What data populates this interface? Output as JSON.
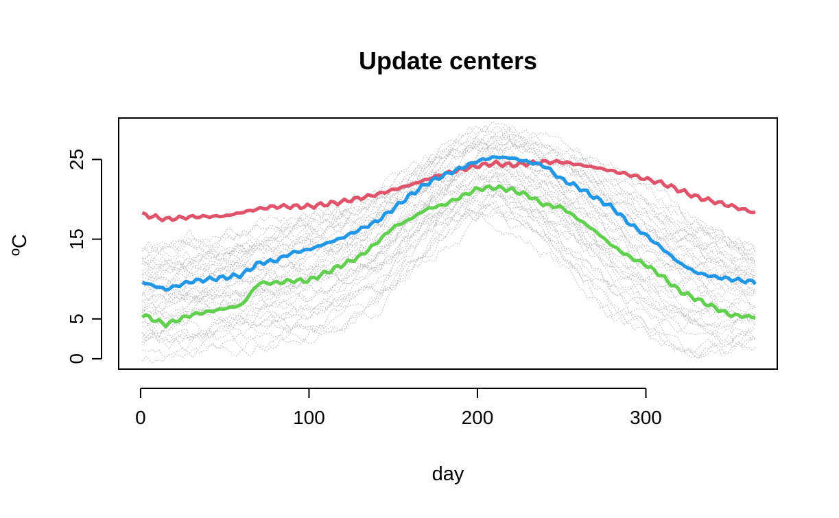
{
  "chart_data": {
    "type": "line",
    "title": "Update centers",
    "xlabel": "day",
    "ylabel": "ºC",
    "xlim": [
      -13,
      378
    ],
    "ylim": [
      -1.3,
      30.2
    ],
    "x_ticks": [
      0,
      100,
      200,
      300
    ],
    "y_ticks": [
      0,
      5,
      15,
      25
    ],
    "grid": false,
    "legend": "none",
    "background_curves": {
      "description_color": "#bebebe",
      "style": "dotted",
      "x_range": [
        1,
        365
      ],
      "count": 40,
      "upper_envelope": [
        [
          1,
          14
        ],
        [
          60,
          16
        ],
        [
          120,
          19
        ],
        [
          160,
          24
        ],
        [
          200,
          29
        ],
        [
          220,
          29
        ],
        [
          260,
          26
        ],
        [
          300,
          21
        ],
        [
          340,
          17
        ],
        [
          365,
          14
        ]
      ],
      "lower_envelope": [
        [
          1,
          0
        ],
        [
          10,
          -0.5
        ],
        [
          60,
          1
        ],
        [
          100,
          2
        ],
        [
          140,
          6
        ],
        [
          180,
          14
        ],
        [
          210,
          17
        ],
        [
          240,
          13
        ],
        [
          280,
          5
        ],
        [
          320,
          0
        ],
        [
          345,
          -0.5
        ],
        [
          365,
          1
        ]
      ]
    },
    "series": [
      {
        "color": "#df536b",
        "points": [
          [
            1,
            18.1
          ],
          [
            15,
            17.5
          ],
          [
            30,
            17.8
          ],
          [
            50,
            17.9
          ],
          [
            70,
            18.8
          ],
          [
            80,
            19.1
          ],
          [
            100,
            19.1
          ],
          [
            120,
            19.7
          ],
          [
            140,
            20.6
          ],
          [
            160,
            21.8
          ],
          [
            180,
            23.2
          ],
          [
            200,
            24.2
          ],
          [
            210,
            24.5
          ],
          [
            220,
            24.3
          ],
          [
            240,
            24.7
          ],
          [
            250,
            24.7
          ],
          [
            270,
            24.0
          ],
          [
            290,
            23.1
          ],
          [
            310,
            22.0
          ],
          [
            330,
            20.3
          ],
          [
            350,
            19.2
          ],
          [
            365,
            18.3
          ]
        ]
      },
      {
        "color": "#2297e6",
        "points": [
          [
            1,
            9.6
          ],
          [
            15,
            8.7
          ],
          [
            30,
            9.7
          ],
          [
            50,
            10.2
          ],
          [
            60,
            10.5
          ],
          [
            70,
            12.0
          ],
          [
            80,
            12.3
          ],
          [
            90,
            13.3
          ],
          [
            100,
            13.7
          ],
          [
            120,
            15.2
          ],
          [
            140,
            17.2
          ],
          [
            150,
            18.8
          ],
          [
            160,
            20.5
          ],
          [
            170,
            22.0
          ],
          [
            180,
            23.0
          ],
          [
            200,
            24.8
          ],
          [
            210,
            25.3
          ],
          [
            220,
            25.2
          ],
          [
            230,
            24.7
          ],
          [
            240,
            24.2
          ],
          [
            250,
            22.5
          ],
          [
            260,
            21.5
          ],
          [
            270,
            20.2
          ],
          [
            280,
            19.0
          ],
          [
            290,
            17.0
          ],
          [
            300,
            15.5
          ],
          [
            310,
            13.8
          ],
          [
            320,
            12.0
          ],
          [
            330,
            10.8
          ],
          [
            340,
            10.3
          ],
          [
            350,
            10.0
          ],
          [
            365,
            9.6
          ]
        ]
      },
      {
        "color": "#61d04f",
        "points": [
          [
            1,
            5.5
          ],
          [
            15,
            4.3
          ],
          [
            30,
            5.5
          ],
          [
            50,
            6.3
          ],
          [
            60,
            6.7
          ],
          [
            70,
            9.5
          ],
          [
            80,
            9.5
          ],
          [
            90,
            9.8
          ],
          [
            100,
            9.8
          ],
          [
            110,
            10.8
          ],
          [
            120,
            11.8
          ],
          [
            130,
            12.8
          ],
          [
            140,
            14.5
          ],
          [
            150,
            16.5
          ],
          [
            160,
            17.5
          ],
          [
            170,
            18.8
          ],
          [
            180,
            19.3
          ],
          [
            190,
            20.3
          ],
          [
            200,
            21.3
          ],
          [
            210,
            21.5
          ],
          [
            220,
            21.2
          ],
          [
            230,
            20.5
          ],
          [
            240,
            19.3
          ],
          [
            250,
            19.0
          ],
          [
            260,
            17.5
          ],
          [
            270,
            16.0
          ],
          [
            280,
            14.2
          ],
          [
            290,
            12.8
          ],
          [
            300,
            11.8
          ],
          [
            310,
            10.3
          ],
          [
            320,
            8.5
          ],
          [
            330,
            7.5
          ],
          [
            340,
            6.5
          ],
          [
            350,
            5.5
          ],
          [
            365,
            5.2
          ]
        ]
      }
    ]
  }
}
